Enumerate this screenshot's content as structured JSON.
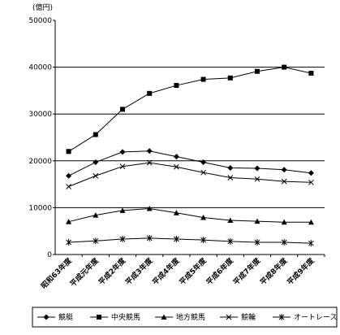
{
  "chart_data": {
    "type": "line",
    "unit_label": "(億円)",
    "categories": [
      "昭和63年度",
      "平成元年度",
      "平成2年度",
      "平成3年度",
      "平成4年度",
      "平成5年度",
      "平成6年度",
      "平成7年度",
      "平成8年度",
      "平成9年度"
    ],
    "series": [
      {
        "name": "競艇",
        "color": "#000000",
        "marker": "diamond",
        "values": [
          16800,
          19700,
          21900,
          22100,
          20900,
          19700,
          18500,
          18400,
          18100,
          17400
        ]
      },
      {
        "name": "中央競馬",
        "color": "#000000",
        "marker": "square",
        "values": [
          22000,
          25600,
          31000,
          34400,
          36100,
          37400,
          37700,
          39100,
          40000,
          38700
        ]
      },
      {
        "name": "地方競馬",
        "color": "#000000",
        "marker": "triangle",
        "values": [
          7000,
          8400,
          9400,
          9800,
          8900,
          7900,
          7300,
          7100,
          6900,
          6900
        ]
      },
      {
        "name": "競輪",
        "color": "#000000",
        "marker": "x",
        "values": [
          14500,
          16800,
          18800,
          19600,
          18700,
          17500,
          16400,
          16100,
          15600,
          15400
        ]
      },
      {
        "name": "オートレース",
        "color": "#000000",
        "marker": "star",
        "values": [
          2600,
          2900,
          3300,
          3500,
          3300,
          3100,
          2800,
          2600,
          2600,
          2400
        ]
      }
    ],
    "ylim": [
      0,
      50000
    ],
    "yticks": [
      0,
      10000,
      20000,
      30000,
      40000,
      50000
    ],
    "grid": true,
    "legend": "bottom"
  }
}
